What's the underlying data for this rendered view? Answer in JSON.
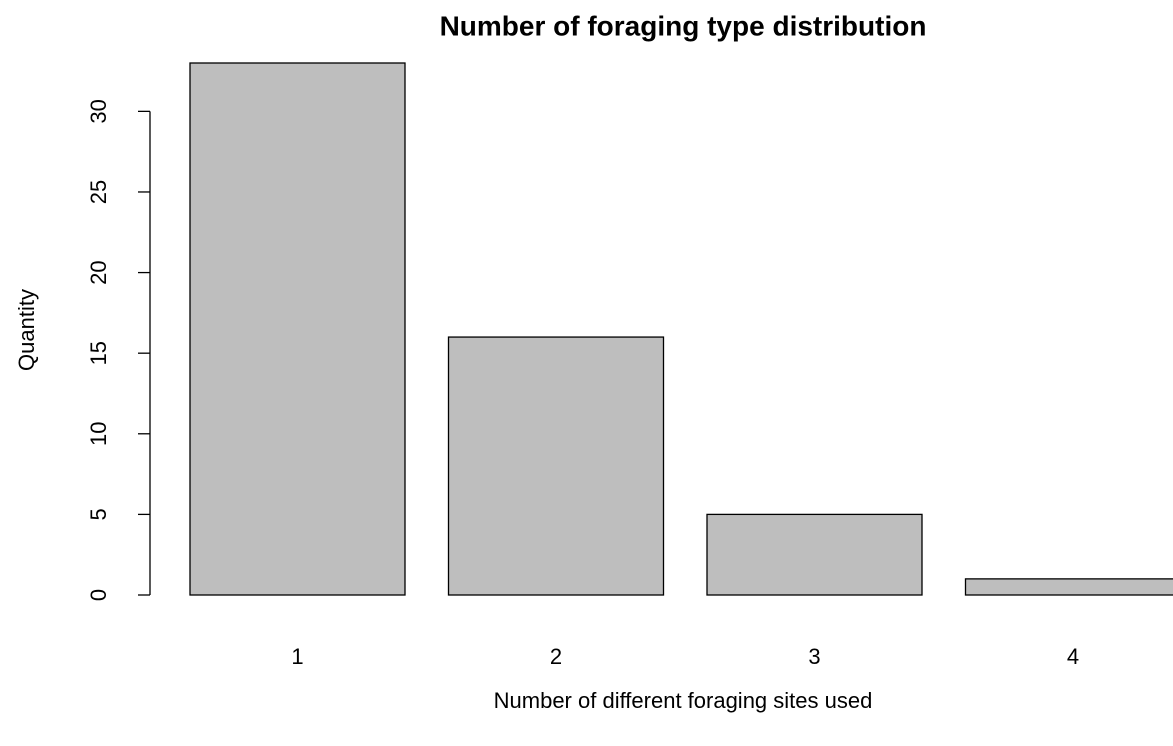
{
  "chart_data": {
    "type": "bar",
    "title": "Number of foraging type distribution",
    "x_label": "Number of different foraging sites used",
    "y_label": "Quantity",
    "categories": [
      "1",
      "2",
      "3",
      "4"
    ],
    "values": [
      33,
      16,
      5,
      1
    ],
    "color": "#bebebe",
    "ylim": [
      0,
      33
    ],
    "yticks": [
      0,
      5,
      10,
      15,
      20,
      25,
      30
    ],
    "grid": false
  }
}
